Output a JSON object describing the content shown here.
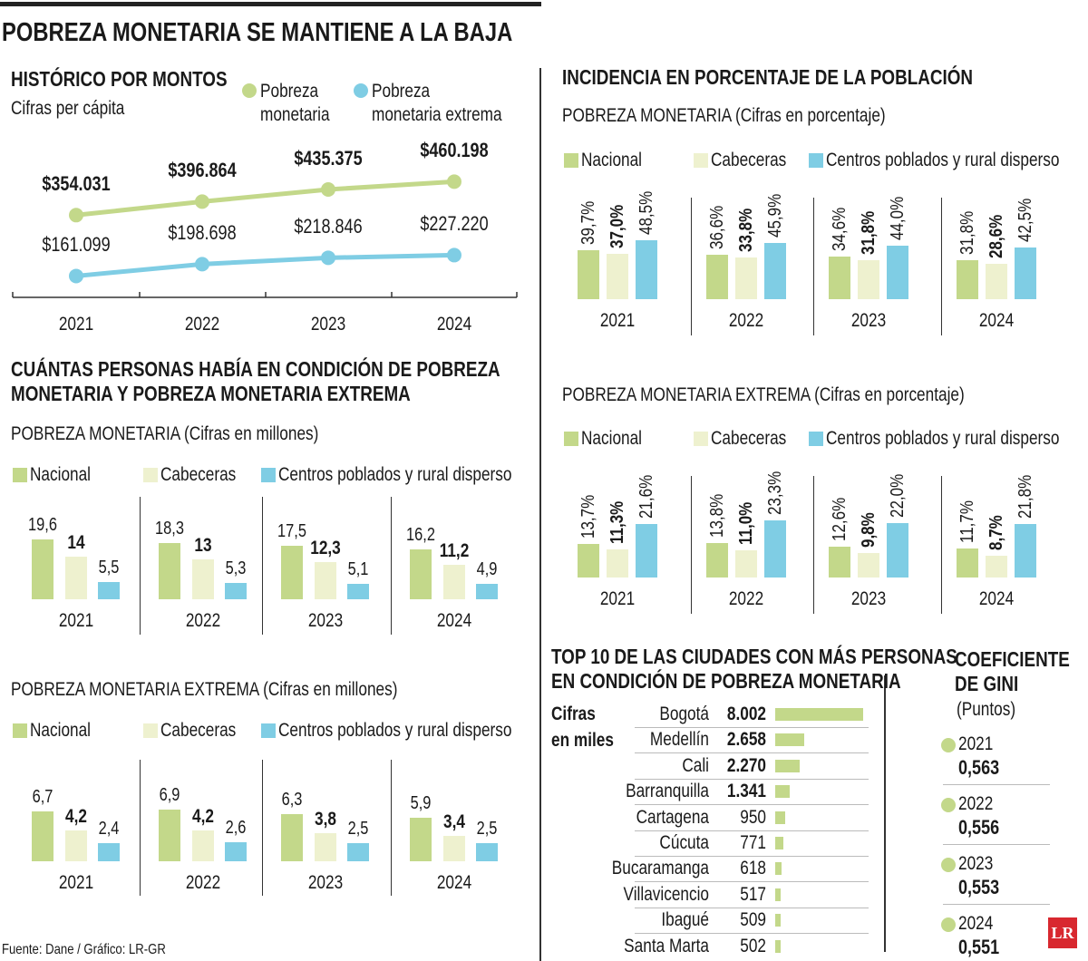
{
  "title": "POBREZA MONETARIA SE MANTIENE A LA BAJA",
  "colors": {
    "nacional": "#c3d88a",
    "cabeceras": "#eef1cf",
    "rural": "#7fcde4",
    "line_green": "#c3d88a",
    "line_blue": "#7fcde4",
    "logo": "#d8282f"
  },
  "historico": {
    "title": "HISTÓRICO POR MONTOS",
    "subtitle": "Cifras per cápita",
    "legend": [
      {
        "line1": "Pobreza",
        "line2": "monetaria"
      },
      {
        "line1": "Pobreza",
        "line2": "monetaria extrema"
      }
    ]
  },
  "personas": {
    "title_line1": "CUÁNTAS PERSONAS HABÍA EN CONDICIÓN DE POBREZA",
    "title_line2": "MONETARIA Y POBREZA MONETARIA EXTREMA"
  },
  "incidencia": {
    "title": "INCIDENCIA EN PORCENTAJE DE LA POBLACIÓN"
  },
  "legend_labels": [
    "Nacional",
    "Cabeceras",
    "Centros poblados y rural disperso"
  ],
  "top10": {
    "title_line1": "TOP 10 DE LAS CIUDADES CON MÁS PERSONAS",
    "title_line2": "EN CONDICIÓN DE POBREZA MONETARIA",
    "unit_line1": "Cifras",
    "unit_line2": "en miles"
  },
  "gini": {
    "title_line1": "COEFICIENTE",
    "title_line2": "DE GINI",
    "unit": "(Puntos)",
    "items": [
      {
        "year": "2021",
        "value": "0,563"
      },
      {
        "year": "2022",
        "value": "0,556"
      },
      {
        "year": "2023",
        "value": "0,553"
      },
      {
        "year": "2024",
        "value": "0,551"
      }
    ]
  },
  "source": "Fuente: Dane / Gráfico: LR-GR",
  "logo": "LR",
  "chart_data": [
    {
      "type": "line",
      "title": "HISTÓRICO POR MONTOS",
      "x": [
        "2021",
        "2022",
        "2023",
        "2024"
      ],
      "series": [
        {
          "name": "Pobreza monetaria",
          "values": [
            354031,
            396864,
            435375,
            460198
          ],
          "labels": [
            "$354.031",
            "$396.864",
            "$435.375",
            "$460.198"
          ]
        },
        {
          "name": "Pobreza monetaria extrema",
          "values": [
            161099,
            198698,
            218846,
            227220
          ],
          "labels": [
            "$161.099",
            "$198.698",
            "$218.846",
            "$227.220"
          ]
        }
      ]
    },
    {
      "type": "bar",
      "title": "POBREZA MONETARIA (Cifras en millones)",
      "categories": [
        "2021",
        "2022",
        "2023",
        "2024"
      ],
      "series": [
        {
          "name": "Nacional",
          "values": [
            19.6,
            18.3,
            17.5,
            16.2
          ],
          "labels": [
            "19,6",
            "18,3",
            "17,5",
            "16,2"
          ]
        },
        {
          "name": "Cabeceras",
          "values": [
            14,
            13,
            12.3,
            11.2
          ],
          "labels": [
            "14",
            "13",
            "12,3",
            "11,2"
          ]
        },
        {
          "name": "Centros poblados y rural disperso",
          "values": [
            5.5,
            5.3,
            5.1,
            4.9
          ],
          "labels": [
            "5,5",
            "5,3",
            "5,1",
            "4,9"
          ]
        }
      ]
    },
    {
      "type": "bar",
      "title": "POBREZA MONETARIA EXTREMA (Cifras en millones)",
      "categories": [
        "2021",
        "2022",
        "2023",
        "2024"
      ],
      "series": [
        {
          "name": "Nacional",
          "values": [
            6.7,
            6.9,
            6.3,
            5.9
          ],
          "labels": [
            "6,7",
            "6,9",
            "6,3",
            "5,9"
          ]
        },
        {
          "name": "Cabeceras",
          "values": [
            4.2,
            4.2,
            3.8,
            3.4
          ],
          "labels": [
            "4,2",
            "4,2",
            "3,8",
            "3,4"
          ]
        },
        {
          "name": "Centros poblados y rural disperso",
          "values": [
            2.4,
            2.6,
            2.5,
            2.5
          ],
          "labels": [
            "2,4",
            "2,6",
            "2,5",
            "2,5"
          ]
        }
      ]
    },
    {
      "type": "bar",
      "title": "POBREZA MONETARIA (Cifras en porcentaje)",
      "categories": [
        "2021",
        "2022",
        "2023",
        "2024"
      ],
      "series": [
        {
          "name": "Nacional",
          "values": [
            39.7,
            36.6,
            34.6,
            31.8
          ],
          "labels": [
            "39,7%",
            "36,6%",
            "34,6%",
            "31,8%"
          ]
        },
        {
          "name": "Cabeceras",
          "values": [
            37.0,
            33.8,
            31.8,
            28.6
          ],
          "labels": [
            "37,0%",
            "33,8%",
            "31,8%",
            "28,6%"
          ]
        },
        {
          "name": "Centros poblados y rural disperso",
          "values": [
            48.5,
            45.9,
            44.0,
            42.5
          ],
          "labels": [
            "48,5%",
            "45,9%",
            "44,0%",
            "42,5%"
          ]
        }
      ]
    },
    {
      "type": "bar",
      "title": "POBREZA MONETARIA EXTREMA (Cifras en porcentaje)",
      "categories": [
        "2021",
        "2022",
        "2023",
        "2024"
      ],
      "series": [
        {
          "name": "Nacional",
          "values": [
            13.7,
            13.8,
            12.6,
            11.7
          ],
          "labels": [
            "13,7%",
            "13,8%",
            "12,6%",
            "11,7%"
          ]
        },
        {
          "name": "Cabeceras",
          "values": [
            11.3,
            11.0,
            9.8,
            8.7
          ],
          "labels": [
            "11,3%",
            "11,0%",
            "9,8%",
            "8,7%"
          ]
        },
        {
          "name": "Centros poblados y rural disperso",
          "values": [
            21.6,
            23.3,
            22.0,
            21.8
          ],
          "labels": [
            "21,6%",
            "23,3%",
            "22,0%",
            "21,8%"
          ]
        }
      ]
    },
    {
      "type": "bar",
      "orientation": "horizontal",
      "title": "TOP 10 DE LAS CIUDADES CON MÁS PERSONAS EN CONDICIÓN DE POBREZA MONETARIA",
      "categories": [
        "Bogotá",
        "Medellín",
        "Cali",
        "Barranquilla",
        "Cartagena",
        "Cúcuta",
        "Bucaramanga",
        "Villavicencio",
        "Ibagué",
        "Santa Marta"
      ],
      "values": [
        8002,
        2658,
        2270,
        1341,
        950,
        771,
        618,
        517,
        509,
        502
      ],
      "labels": [
        "8.002",
        "2.658",
        "2.270",
        "1.341",
        "950",
        "771",
        "618",
        "517",
        "509",
        "502"
      ]
    }
  ]
}
